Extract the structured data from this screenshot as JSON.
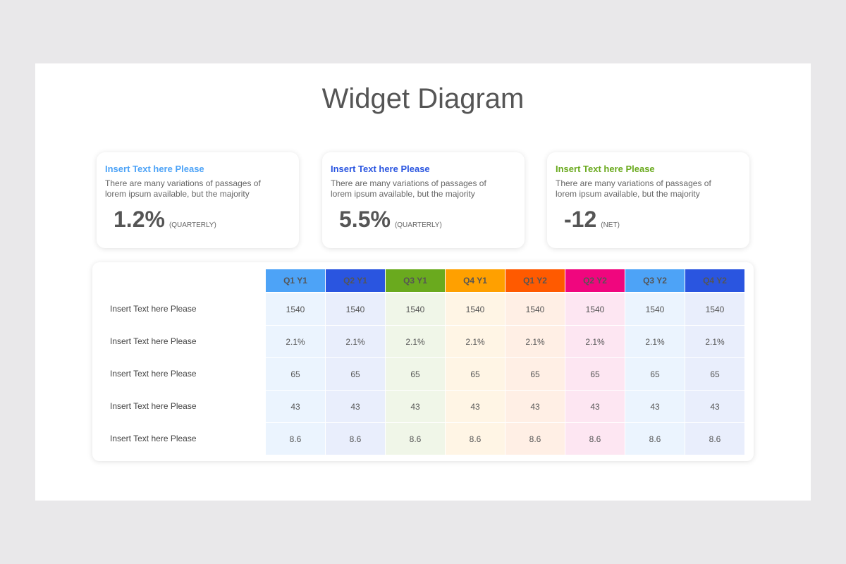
{
  "title": "Widget Diagram",
  "cards": [
    {
      "heading": "Insert Text here Please",
      "body": "There are many variations of passages of lorem ipsum available, but the majority",
      "value": "1.2%",
      "unit": "(QUARTERLY)",
      "color": "#4da3f7"
    },
    {
      "heading": "Insert Text here Please",
      "body": "There are many variations of passages of lorem ipsum available, but the majority",
      "value": "5.5%",
      "unit": "(QUARTERLY)",
      "color": "#2a55e0"
    },
    {
      "heading": "Insert Text here Please",
      "body": "There are many variations of passages of lorem ipsum available, but the majority",
      "value": "-12",
      "unit": "(NET)",
      "color": "#6aaa1e"
    }
  ],
  "table": {
    "columns": [
      {
        "label": "Q1 Y1",
        "color": "#4da3f7",
        "tint": "#ebf4fe"
      },
      {
        "label": "Q2 Y1",
        "color": "#2a55e0",
        "tint": "#e9eefc"
      },
      {
        "label": "Q3 Y1",
        "color": "#6aaa1e",
        "tint": "#f0f6e8"
      },
      {
        "label": "Q4 Y1",
        "color": "#ffa000",
        "tint": "#fff5e5"
      },
      {
        "label": "Q1 Y2",
        "color": "#ff5a00",
        "tint": "#ffefe5"
      },
      {
        "label": "Q2 Y2",
        "color": "#f0067e",
        "tint": "#fde6f2"
      },
      {
        "label": "Q3 Y2",
        "color": "#4da3f7",
        "tint": "#ebf4fe"
      },
      {
        "label": "Q4 Y2",
        "color": "#2a55e0",
        "tint": "#e9eefc"
      }
    ],
    "rows": [
      {
        "label": "Insert Text here Please",
        "values": [
          "1540",
          "1540",
          "1540",
          "1540",
          "1540",
          "1540",
          "1540",
          "1540"
        ]
      },
      {
        "label": "Insert Text here Please",
        "values": [
          "2.1%",
          "2.1%",
          "2.1%",
          "2.1%",
          "2.1%",
          "2.1%",
          "2.1%",
          "2.1%"
        ]
      },
      {
        "label": "Insert Text here Please",
        "values": [
          "65",
          "65",
          "65",
          "65",
          "65",
          "65",
          "65",
          "65"
        ]
      },
      {
        "label": "Insert Text here Please",
        "values": [
          "43",
          "43",
          "43",
          "43",
          "43",
          "43",
          "43",
          "43"
        ]
      },
      {
        "label": "Insert Text here Please",
        "values": [
          "8.6",
          "8.6",
          "8.6",
          "8.6",
          "8.6",
          "8.6",
          "8.6",
          "8.6"
        ]
      }
    ]
  }
}
